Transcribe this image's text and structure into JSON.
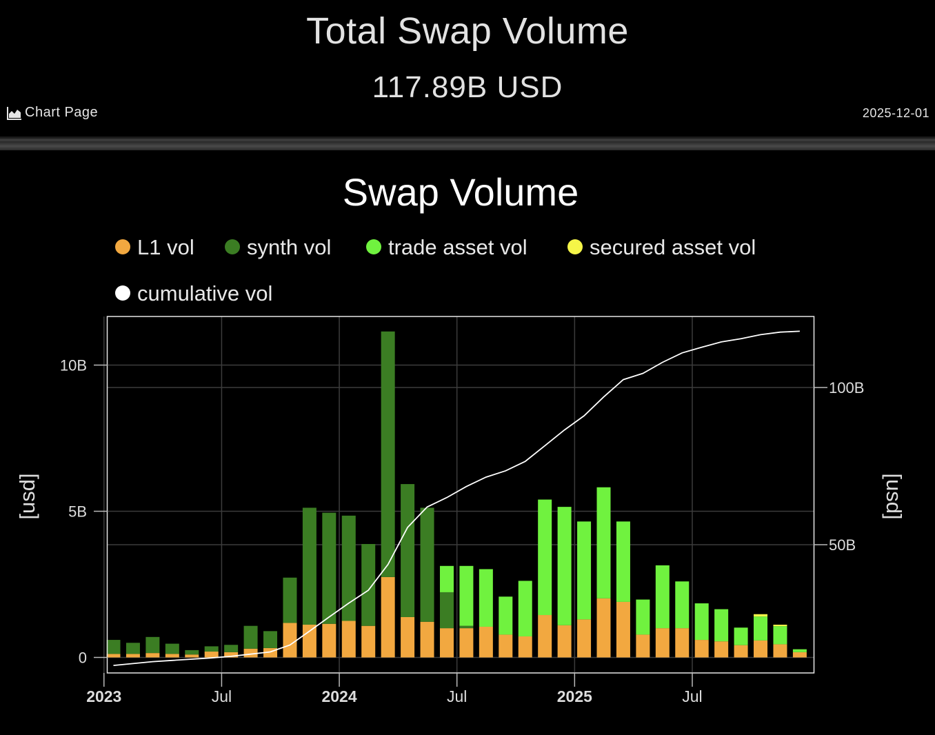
{
  "header": {
    "title": "Total Swap Volume",
    "total": "117.89B USD",
    "chart_page_label": "Chart Page",
    "date": "2025-12-01"
  },
  "colors": {
    "l1": "#f2a840",
    "synth": "#3b7d23",
    "trade": "#70f23f",
    "secured": "#f5f548",
    "cumulative": "#ffffff"
  },
  "chart_data": {
    "type": "bar",
    "title": "Swap Volume",
    "stacked": true,
    "legend_position": "top",
    "grid": true,
    "left_axis": {
      "label": "[usd]",
      "ticks": [
        0,
        5,
        10
      ],
      "tick_labels": [
        "0",
        "5B",
        "10B"
      ],
      "range": [
        0,
        11.5
      ],
      "unit": "B USD"
    },
    "right_axis": {
      "label": "[usd]",
      "ticks": [
        50,
        100
      ],
      "tick_labels": [
        "50B",
        "100B"
      ],
      "range": [
        11,
        121
      ],
      "unit": "B USD"
    },
    "x_axis": {
      "ticks": [
        "2023",
        "Jul",
        "2024",
        "Jul",
        "2025",
        "Jul"
      ],
      "bold": [
        "2023",
        "2024",
        "2025"
      ],
      "tick_months": [
        "2023-01",
        "2023-07",
        "2024-01",
        "2024-07",
        "2025-01",
        "2025-07"
      ]
    },
    "months": [
      "2023-01",
      "2023-02",
      "2023-03",
      "2023-04",
      "2023-05",
      "2023-06",
      "2023-07",
      "2023-08",
      "2023-09",
      "2023-10",
      "2023-11",
      "2023-12",
      "2024-01",
      "2024-02",
      "2024-03",
      "2024-04",
      "2024-05",
      "2024-06",
      "2024-07",
      "2024-08",
      "2024-09",
      "2024-10",
      "2024-11",
      "2024-12",
      "2025-01",
      "2025-02",
      "2025-03",
      "2025-04",
      "2025-05",
      "2025-06",
      "2025-07",
      "2025-08",
      "2025-09",
      "2025-10",
      "2025-11",
      "2025-12"
    ],
    "series": [
      {
        "name": "L1 vol",
        "key": "l1",
        "values": [
          0.12,
          0.12,
          0.15,
          0.12,
          0.1,
          0.2,
          0.18,
          0.3,
          0.32,
          1.18,
          1.12,
          1.15,
          1.25,
          1.08,
          2.75,
          1.38,
          1.22,
          1.0,
          1.0,
          1.05,
          0.78,
          0.72,
          1.45,
          1.1,
          1.3,
          2.02,
          1.9,
          0.78,
          1.0,
          1.0,
          0.6,
          0.55,
          0.42,
          0.58,
          0.45,
          0.18
        ]
      },
      {
        "name": "synth vol",
        "key": "synth",
        "values": [
          0.48,
          0.38,
          0.55,
          0.35,
          0.15,
          0.18,
          0.25,
          0.78,
          0.58,
          1.55,
          4.0,
          3.8,
          3.6,
          2.8,
          8.4,
          4.55,
          3.9,
          1.23,
          0.08,
          0,
          0,
          0,
          0,
          0,
          0,
          0,
          0,
          0,
          0,
          0,
          0,
          0,
          0,
          0,
          0,
          0
        ]
      },
      {
        "name": "trade asset vol",
        "key": "trade",
        "values": [
          0,
          0,
          0,
          0,
          0,
          0,
          0,
          0,
          0,
          0,
          0,
          0,
          0,
          0,
          0,
          0,
          0,
          0.9,
          2.05,
          1.97,
          1.3,
          1.9,
          3.95,
          4.05,
          3.35,
          3.8,
          2.75,
          1.2,
          2.15,
          1.6,
          1.25,
          1.1,
          0.6,
          0.82,
          0.62,
          0.1
        ]
      },
      {
        "name": "secured asset vol",
        "key": "secured",
        "values": [
          0,
          0,
          0,
          0,
          0,
          0,
          0,
          0,
          0,
          0,
          0,
          0,
          0,
          0,
          0,
          0,
          0,
          0,
          0,
          0,
          0,
          0,
          0,
          0,
          0,
          0,
          0,
          0,
          0,
          0,
          0,
          0,
          0,
          0.08,
          0.05,
          0
        ]
      },
      {
        "name": "cumulative vol",
        "key": "cumulative",
        "type": "line",
        "axis": "right",
        "values": [
          11.6,
          12.2,
          12.8,
          13.2,
          13.6,
          14.0,
          14.5,
          15.2,
          15.9,
          18.1,
          22.5,
          27.0,
          31.4,
          35.5,
          43.7,
          55.5,
          62.0,
          65.0,
          68.5,
          71.5,
          73.5,
          76.5,
          81.5,
          86.5,
          91.0,
          97.0,
          102.5,
          104.5,
          108.0,
          111.0,
          112.8,
          114.5,
          115.5,
          116.8,
          117.6,
          117.9
        ]
      }
    ]
  }
}
